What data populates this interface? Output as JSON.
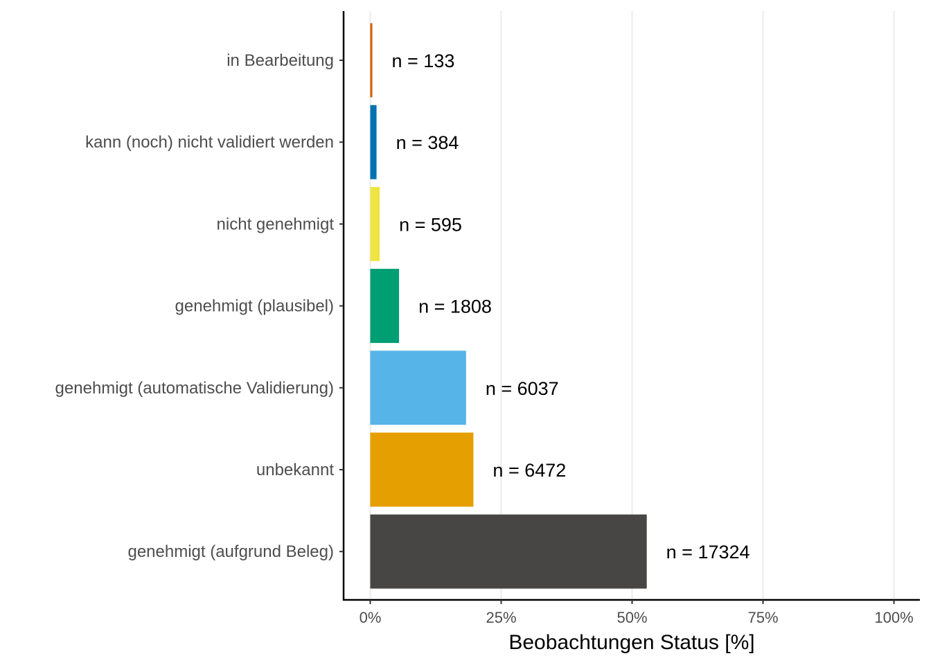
{
  "chart_data": {
    "type": "bar",
    "orientation": "horizontal",
    "title": "",
    "xlabel": "Beobachtungen Status [%]",
    "ylabel": "",
    "xlim": [
      0,
      100
    ],
    "x_ticks": [
      0,
      25,
      50,
      75,
      100
    ],
    "x_tick_labels": [
      "0%",
      "25%",
      "50%",
      "75%",
      "100%"
    ],
    "grid": "vertical major gridlines",
    "legend": "none",
    "categories": [
      "in Bearbeitung",
      "kann (noch) nicht validiert werden",
      "nicht genehmigt",
      "genehmigt (plausibel)",
      "genehmigt (automatische Validierung)",
      "unbekannt",
      "genehmigt (aufgrund Beleg)"
    ],
    "values": [
      0.4,
      1.2,
      1.8,
      5.5,
      18.3,
      19.7,
      52.8
    ],
    "counts": [
      133,
      384,
      595,
      1808,
      6037,
      6472,
      17324
    ],
    "data_labels": [
      "n = 133",
      "n = 384",
      "n = 595",
      "n = 1808",
      "n = 6037",
      "n = 6472",
      "n = 17324"
    ],
    "colors": [
      "#D55E00",
      "#0072B2",
      "#F0E442",
      "#009E73",
      "#56B4E9",
      "#E69F00",
      "#474644"
    ]
  }
}
